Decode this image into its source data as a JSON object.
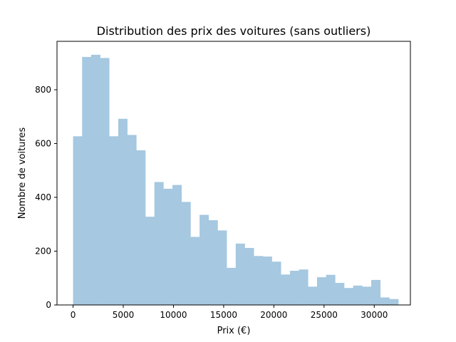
{
  "chart_data": {
    "type": "bar",
    "title": "Distribution des prix des voitures (sans outliers)",
    "xlabel": "Prix (€)",
    "ylabel": "Nombre de voitures",
    "xlim": [
      -1600,
      33600
    ],
    "ylim": [
      0,
      980
    ],
    "xticks": [
      0,
      5000,
      10000,
      15000,
      20000,
      25000,
      30000
    ],
    "yticks": [
      0,
      200,
      400,
      600,
      800
    ],
    "bin_width": 900,
    "bin_start": 0,
    "counts": [
      627,
      922,
      930,
      918,
      627,
      692,
      632,
      575,
      328,
      457,
      432,
      446,
      383,
      253,
      335,
      315,
      277,
      138,
      228,
      212,
      182,
      180,
      161,
      113,
      127,
      132,
      68,
      103,
      112,
      82,
      63,
      72,
      68,
      93,
      28,
      22
    ],
    "bar_color": "#a6c8e0",
    "grid": false
  }
}
